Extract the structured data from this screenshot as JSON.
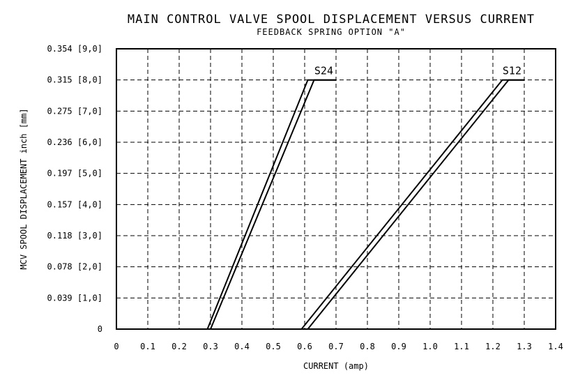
{
  "chart_data": {
    "type": "line",
    "title": "MAIN CONTROL VALVE SPOOL DISPLACEMENT VERSUS CURRENT",
    "subtitle": "FEEDBACK SPRING OPTION \"A\"",
    "xlabel": "CURRENT (amp)",
    "ylabel": "MCV SPOOL DISPLACEMENT inch [mm]",
    "xlim": [
      0,
      1.4
    ],
    "ylim": [
      0,
      9
    ],
    "grid": true,
    "x_ticks": [
      "0",
      "0.1",
      "0.2",
      "0.3",
      "0.4",
      "0.5",
      "0.6",
      "0.7",
      "0.8",
      "0.9",
      "1.0",
      "1.1",
      "1.2",
      "1.3",
      "1.4"
    ],
    "y_ticks": [
      "0",
      "0.039 [1,0]",
      "0.078 [2,0]",
      "0.118 [3,0]",
      "0.157 [4,0]",
      "0.197 [5,0]",
      "0.236 [6,0]",
      "0.275 [7,0]",
      "0.315 [8,0]",
      "0.354 [9,0]"
    ],
    "series": [
      {
        "name": "S24",
        "lines": [
          {
            "x": [
              0.29,
              0.61,
              0.7
            ],
            "y": [
              0,
              8.0,
              8.0
            ]
          },
          {
            "x": [
              0.3,
              0.63,
              0.7
            ],
            "y": [
              0,
              8.0,
              8.0
            ]
          }
        ]
      },
      {
        "name": "S12",
        "lines": [
          {
            "x": [
              0.59,
              1.23,
              1.3
            ],
            "y": [
              0,
              8.0,
              8.0
            ]
          },
          {
            "x": [
              0.61,
              1.25,
              1.3
            ],
            "y": [
              0,
              8.0,
              8.0
            ]
          }
        ]
      }
    ]
  }
}
